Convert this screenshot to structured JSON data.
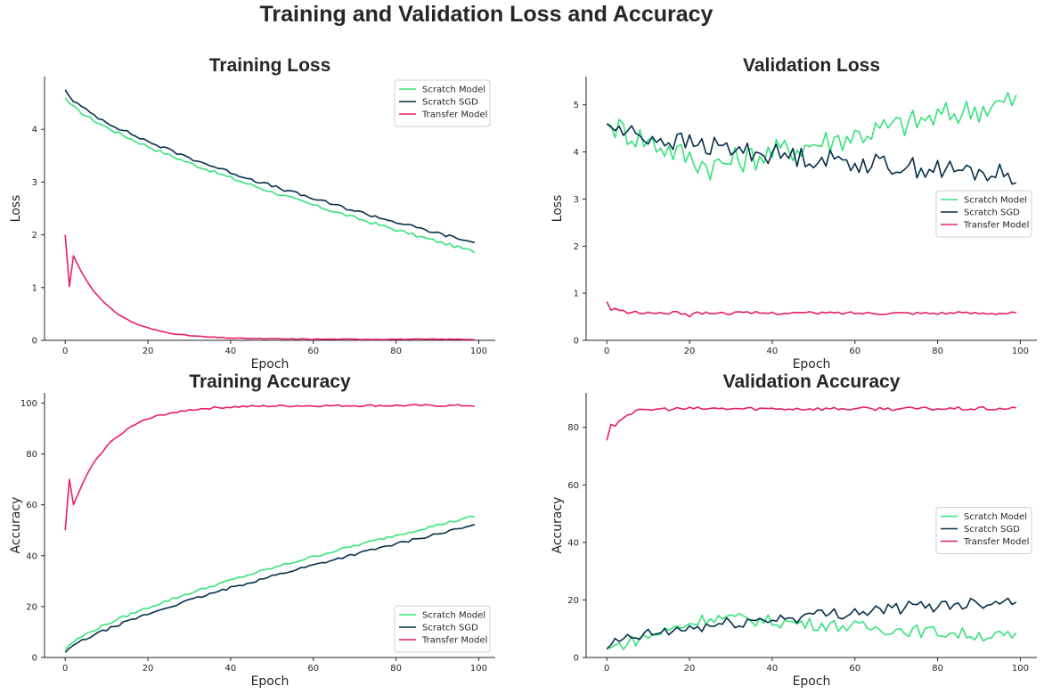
{
  "suptitle": "Training and Validation Loss and Accuracy",
  "colors": {
    "Scratch Model": "#36e27a",
    "Scratch SGD": "#062f4a",
    "Transfer Model": "#e91e63"
  },
  "chart_data": [
    {
      "type": "line",
      "title": "Training Loss",
      "xlabel": "Epoch",
      "ylabel": "Loss",
      "xlim": [
        -5,
        104
      ],
      "ylim": [
        0,
        5
      ],
      "xticks": [
        0,
        20,
        40,
        60,
        80,
        100
      ],
      "yticks": [
        0,
        1,
        2,
        3,
        4
      ],
      "legend": "top-right",
      "gen": [
        {
          "name": "Scratch Model",
          "kind": "pow",
          "start": 4.6,
          "end": 1.68,
          "p": 0.72,
          "noise": 0.03
        },
        {
          "name": "Scratch SGD",
          "kind": "pow",
          "start": 4.75,
          "end": 1.85,
          "p": 0.68,
          "noise": 0.03
        },
        {
          "name": "Transfer Model",
          "kind": "exp",
          "start": 2.0,
          "end": 0.02,
          "tau": 9,
          "first": 2.0,
          "second": 1.02,
          "noise": 0.008
        }
      ],
      "series": []
    },
    {
      "type": "line",
      "title": "Validation Loss",
      "xlabel": "Epoch",
      "ylabel": "Loss",
      "xlim": [
        -5,
        104
      ],
      "ylim": [
        0,
        5.6
      ],
      "xticks": [
        0,
        20,
        40,
        60,
        80,
        100
      ],
      "yticks": [
        0,
        1,
        2,
        3,
        4,
        5
      ],
      "legend": "center-right",
      "gen": [
        {
          "name": "Scratch Model",
          "kind": "valley",
          "start": 4.6,
          "min": 3.7,
          "minx": 25,
          "end": 5.1,
          "noise": 0.3
        },
        {
          "name": "Scratch SGD",
          "kind": "pow",
          "start": 4.6,
          "end": 3.5,
          "p": 0.6,
          "noise": 0.22
        },
        {
          "name": "Transfer Model",
          "kind": "exp",
          "start": 0.82,
          "end": 0.58,
          "tau": 2,
          "first": 0.82,
          "second": 0.64,
          "noise": 0.03,
          "dipAt": 20,
          "dip": 0.5
        }
      ],
      "series": []
    },
    {
      "type": "line",
      "title": "Training Accuracy",
      "xlabel": "Epoch",
      "ylabel": "Accuracy",
      "xlim": [
        -5,
        104
      ],
      "ylim": [
        0,
        104
      ],
      "xticks": [
        0,
        20,
        40,
        60,
        80,
        100
      ],
      "yticks": [
        0,
        20,
        40,
        60,
        80,
        100
      ],
      "legend": "bottom-right",
      "gen": [
        {
          "name": "Scratch Model",
          "kind": "pow",
          "start": 3,
          "end": 55.5,
          "p": 0.72,
          "noise": 0.5
        },
        {
          "name": "Scratch SGD",
          "kind": "pow",
          "start": 2,
          "end": 52,
          "p": 0.75,
          "noise": 0.5
        },
        {
          "name": "Transfer Model",
          "kind": "exp",
          "start": 50,
          "end": 99,
          "tau": 9,
          "first": 50,
          "second": 70,
          "noise": 0.4
        }
      ],
      "series": []
    },
    {
      "type": "line",
      "title": "Validation Accuracy",
      "xlabel": "Epoch",
      "ylabel": "Accuracy",
      "xlim": [
        -5,
        104
      ],
      "ylim": [
        0,
        92
      ],
      "xticks": [
        0,
        20,
        40,
        60,
        80,
        100
      ],
      "yticks": [
        0,
        20,
        40,
        60,
        80
      ],
      "legend": "center-right",
      "gen": [
        {
          "name": "Scratch Model",
          "kind": "hump",
          "start": 3,
          "peak": 14,
          "peakx": 25,
          "end": 7,
          "noise": 2.2
        },
        {
          "name": "Scratch SGD",
          "kind": "pow",
          "start": 3,
          "end": 20,
          "p": 0.55,
          "noise": 2.2
        },
        {
          "name": "Transfer Model",
          "kind": "exp",
          "start": 75.5,
          "end": 86.5,
          "tau": 3,
          "first": 75.5,
          "second": 81,
          "noise": 0.6
        }
      ],
      "series": []
    }
  ]
}
